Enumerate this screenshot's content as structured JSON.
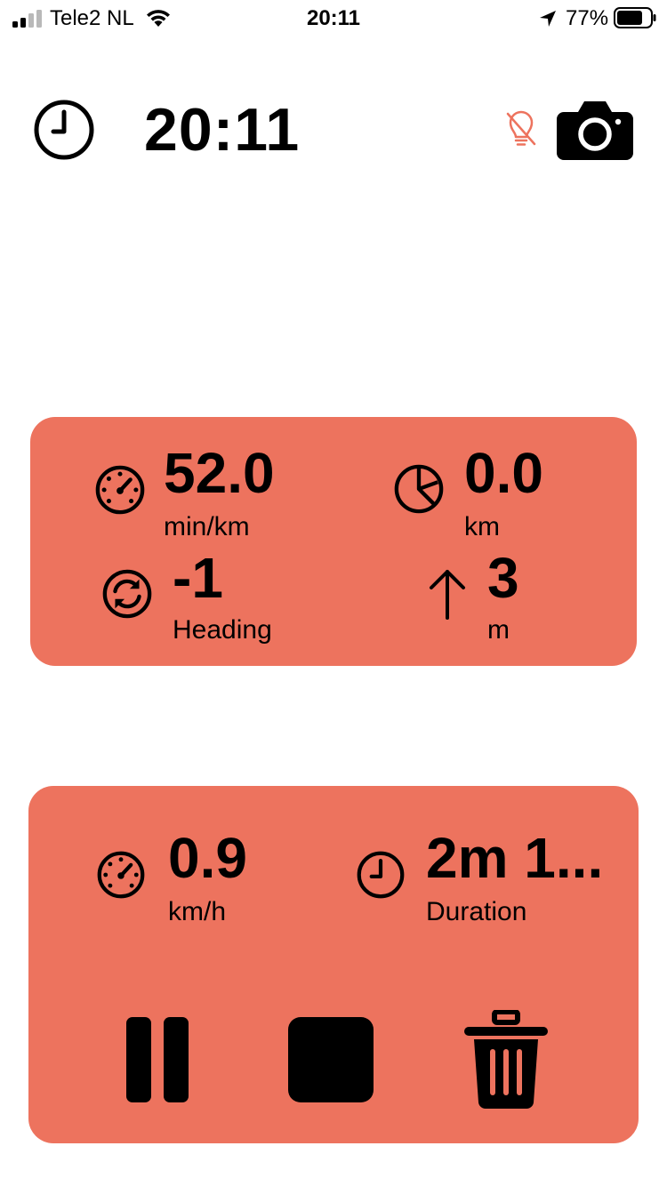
{
  "status_bar": {
    "carrier": "Tele2 NL",
    "time": "20:11",
    "battery": "77%"
  },
  "header": {
    "time": "20:11",
    "clock_icon": "clock-icon",
    "bulb_icon": "lightbulb-off-icon",
    "camera_icon": "camera-icon"
  },
  "stats": {
    "pace": {
      "value": "52.0",
      "unit": "min/km",
      "icon": "speedometer-icon"
    },
    "distance": {
      "value": "0.0",
      "unit": "km",
      "icon": "pie-chart-icon"
    },
    "heading": {
      "value": "-1",
      "unit": "Heading",
      "icon": "sync-icon"
    },
    "altitude": {
      "value": "3",
      "unit": "m",
      "icon": "arrow-up-icon"
    }
  },
  "session": {
    "speed": {
      "value": "0.9",
      "unit": "km/h",
      "icon": "speedometer-icon"
    },
    "duration": {
      "value": "2m 1...",
      "unit": "Duration",
      "icon": "clock-icon"
    }
  },
  "controls": {
    "pause_icon": "pause-icon",
    "stop_icon": "stop-icon",
    "delete_icon": "trash-icon"
  },
  "colors": {
    "accent": "#ED735E",
    "bulb": "#ED735E",
    "text": "#000000",
    "background": "#FFFFFF"
  }
}
